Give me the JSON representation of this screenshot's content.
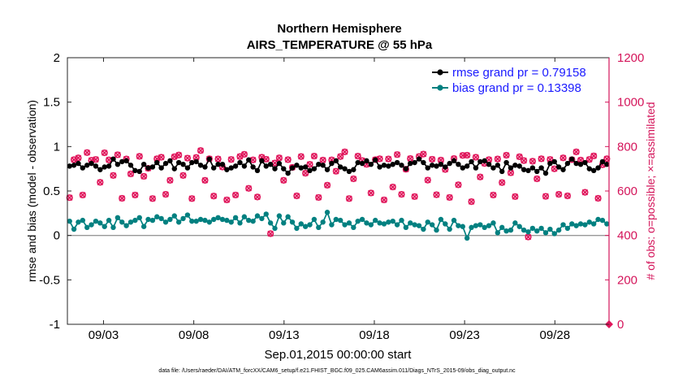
{
  "chart_data": {
    "type": "line",
    "title": "Northern Hemisphere",
    "subtitle": "AIRS_TEMPERATURE @ 55 hPa",
    "xlabel": "Sep.01,2015 00:00:00 start",
    "ylabel": "rmse and bias (model - observation)",
    "y2label": "# of obs: o=possible; ×=assimilated",
    "footnote": "data file: /Users/raeder/DAI/ATM_forcXX/CAM6_setup/f.e21.FHIST_BGC.f09_025.CAM6assim.011/Diags_NTrS_2015-09/obs_diag_output.nc",
    "xlim": [
      1,
      31
    ],
    "ylim": [
      -1,
      2
    ],
    "y2lim": [
      0,
      1200
    ],
    "x_ticks": [
      3,
      8,
      13,
      18,
      23,
      28
    ],
    "x_ticklabels": [
      "09/03",
      "09/08",
      "09/13",
      "09/18",
      "09/23",
      "09/28"
    ],
    "y_ticks": [
      "-1",
      "-0.5",
      "0",
      "0.5",
      "1",
      "1.5",
      "2"
    ],
    "y2_ticks": [
      "0",
      "200",
      "400",
      "600",
      "800",
      "1000",
      "1200"
    ],
    "colors": {
      "rmse": "#000000",
      "bias": "#008080",
      "obs": "#e0155b",
      "y2axis": "#d4145a",
      "legend_text": "#1a1aff",
      "zero_line": "#999999"
    },
    "series": [
      {
        "name": "rmse",
        "legend": "rmse grand pr = 0.79158",
        "values": [
          0.78,
          0.79,
          0.81,
          0.76,
          0.79,
          0.81,
          0.78,
          0.74,
          0.77,
          0.78,
          0.86,
          0.8,
          0.83,
          0.84,
          0.79,
          0.73,
          0.72,
          0.8,
          0.76,
          0.77,
          0.82,
          0.76,
          0.81,
          0.84,
          0.75,
          0.82,
          0.8,
          0.76,
          0.82,
          0.83,
          0.79,
          0.77,
          0.86,
          0.76,
          0.8,
          0.8,
          0.74,
          0.76,
          0.78,
          0.82,
          0.78,
          0.85,
          0.77,
          0.73,
          0.84,
          0.78,
          0.8,
          0.75,
          0.81,
          0.75,
          0.7,
          0.76,
          0.79,
          0.76,
          0.77,
          0.73,
          0.75,
          0.8,
          0.79,
          0.74,
          0.81,
          0.84,
          0.77,
          0.75,
          0.72,
          0.74,
          0.82,
          0.81,
          0.84,
          0.8,
          0.85,
          0.77,
          0.79,
          0.78,
          0.8,
          0.82,
          0.79,
          0.75,
          0.81,
          0.82,
          0.86,
          0.82,
          0.76,
          0.79,
          0.78,
          0.8,
          0.77,
          0.81,
          0.84,
          0.8,
          0.76,
          0.78,
          0.83,
          0.76,
          0.83,
          0.84,
          0.8,
          0.76,
          0.79,
          0.72,
          0.82,
          0.76,
          0.79,
          0.78,
          0.74,
          0.73,
          0.76,
          0.72,
          0.76,
          0.7,
          0.81,
          0.83,
          0.77,
          0.74,
          0.81,
          0.86,
          0.81,
          0.8,
          0.82,
          0.75,
          0.73,
          0.76,
          0.83,
          0.8
        ]
      },
      {
        "name": "bias",
        "legend": "bias grand pr = 0.13398",
        "values": [
          0.16,
          0.07,
          0.15,
          0.17,
          0.09,
          0.12,
          0.16,
          0.14,
          0.1,
          0.17,
          0.09,
          0.2,
          0.15,
          0.11,
          0.15,
          0.17,
          0.2,
          0.1,
          0.18,
          0.17,
          0.21,
          0.19,
          0.15,
          0.18,
          0.22,
          0.15,
          0.19,
          0.23,
          0.16,
          0.16,
          0.18,
          0.17,
          0.15,
          0.18,
          0.2,
          0.18,
          0.17,
          0.15,
          0.2,
          0.14,
          0.21,
          0.17,
          0.16,
          0.22,
          0.19,
          0.24,
          0.14,
          0.08,
          0.22,
          0.14,
          0.21,
          0.15,
          0.08,
          0.13,
          0.1,
          0.12,
          0.18,
          0.09,
          0.15,
          0.26,
          0.12,
          0.18,
          0.17,
          0.12,
          0.14,
          0.09,
          0.16,
          0.18,
          0.14,
          0.12,
          0.17,
          0.14,
          0.13,
          0.15,
          0.16,
          0.12,
          0.17,
          0.09,
          0.14,
          0.12,
          0.11,
          0.07,
          0.15,
          0.12,
          0.06,
          0.18,
          0.13,
          0.07,
          0.17,
          0.11,
          0.1,
          -0.03,
          0.09,
          0.11,
          0.12,
          0.09,
          0.11,
          0.14,
          0.03,
          0.09,
          0.05,
          0.06,
          0.14,
          0.1,
          0.06,
          0.04,
          0.08,
          0.05,
          0.08,
          0.03,
          0.07,
          0.02,
          0.06,
          0.12,
          0.08,
          0.13,
          0.11,
          0.13,
          0.12,
          0.15,
          0.13,
          0.18,
          0.17,
          0.13
        ]
      },
      {
        "name": "obs_possible",
        "axis": "right",
        "marker": "o",
        "values": [
          570,
          741,
          749,
          582,
          773,
          738,
          742,
          639,
          772,
          740,
          670,
          763,
          567,
          744,
          677,
          582,
          756,
          666,
          702,
          566,
          745,
          752,
          585,
          648,
          754,
          762,
          670,
          748,
          566,
          751,
          782,
          648,
          745,
          577,
          744,
          708,
          560,
          742,
          582,
          755,
          765,
          612,
          740,
          573,
          752,
          743,
          408,
          726,
          749,
          648,
          741,
          706,
          578,
          755,
          680,
          720,
          757,
          571,
          739,
          626,
          740,
          689,
          755,
          776,
          566,
          655,
          757,
          737,
          720,
          591,
          741,
          745,
          560,
          744,
          618,
          764,
          585,
          698,
          746,
          575,
          755,
          766,
          649,
          743,
          583,
          739,
          697,
          571,
          746,
          628,
          760,
          761,
          552,
          752,
          663,
          724,
          741,
          582,
          744,
          638,
          761,
          682,
          575,
          754,
          737,
          393,
          734,
          655,
          745,
          576,
          742,
          700,
          585,
          749,
          578,
          741,
          776,
          739,
          594,
          742,
          758,
          567,
          718,
          745
        ]
      },
      {
        "name": "obs_assimilated",
        "axis": "right",
        "marker": "x",
        "values": [
          570,
          741,
          749,
          582,
          773,
          738,
          742,
          639,
          772,
          740,
          670,
          763,
          567,
          744,
          677,
          582,
          756,
          666,
          702,
          566,
          745,
          752,
          585,
          648,
          754,
          762,
          670,
          748,
          566,
          751,
          782,
          648,
          745,
          577,
          744,
          708,
          560,
          742,
          582,
          755,
          765,
          612,
          740,
          573,
          752,
          743,
          408,
          726,
          749,
          648,
          741,
          706,
          578,
          755,
          680,
          720,
          757,
          571,
          739,
          626,
          740,
          689,
          755,
          776,
          566,
          655,
          757,
          737,
          720,
          591,
          741,
          745,
          560,
          744,
          618,
          764,
          585,
          698,
          746,
          575,
          755,
          766,
          649,
          743,
          583,
          739,
          697,
          571,
          746,
          628,
          760,
          761,
          552,
          752,
          663,
          724,
          741,
          582,
          744,
          638,
          761,
          682,
          575,
          754,
          737,
          393,
          734,
          655,
          745,
          576,
          742,
          700,
          585,
          749,
          578,
          741,
          776,
          739,
          594,
          742,
          758,
          567,
          718,
          745
        ]
      }
    ]
  }
}
